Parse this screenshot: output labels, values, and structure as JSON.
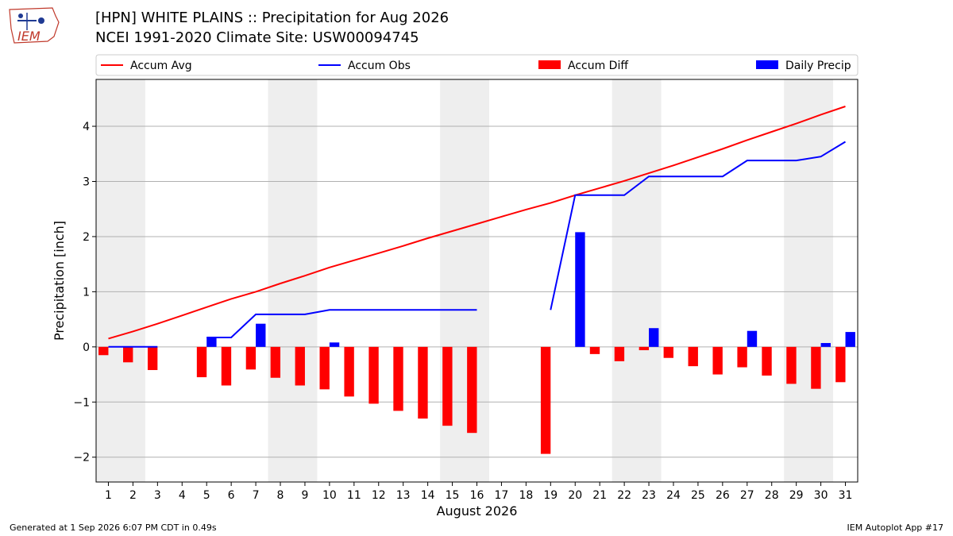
{
  "header": {
    "title_line1": "[HPN] WHITE PLAINS :: Precipitation for Aug 2026",
    "title_line2": "NCEI 1991-2020 Climate Site: USW00094745",
    "logo_text": "IEM"
  },
  "footer": {
    "generated": "Generated at 1 Sep 2026 6:07 PM CDT in 0.49s",
    "app": "IEM Autoplot App #17"
  },
  "colors": {
    "accum_avg": "#ff0000",
    "accum_obs": "#0000ff",
    "accum_diff": "#ff0000",
    "daily_precip": "#0000ff",
    "weekend_shade": "#eeeeee",
    "grid": "#b0b0b0"
  },
  "chart_data": {
    "type": "bar",
    "xlabel": "August 2026",
    "ylabel": "Precipitation [inch]",
    "ylim": [
      -2.45,
      4.85
    ],
    "yticks": [
      -2,
      -1,
      0,
      1,
      2,
      3,
      4
    ],
    "ytick_labels": [
      "−2",
      "−1",
      "0",
      "1",
      "2",
      "3",
      "4"
    ],
    "xlim": [
      0.5,
      31.5
    ],
    "x": [
      1,
      2,
      3,
      4,
      5,
      6,
      7,
      8,
      9,
      10,
      11,
      12,
      13,
      14,
      15,
      16,
      17,
      18,
      19,
      20,
      21,
      22,
      23,
      24,
      25,
      26,
      27,
      28,
      29,
      30,
      31
    ],
    "weekend_spans": [
      [
        0.5,
        2.5
      ],
      [
        7.5,
        9.5
      ],
      [
        14.5,
        16.5
      ],
      [
        21.5,
        23.5
      ],
      [
        28.5,
        30.5
      ]
    ],
    "grid": true,
    "legend_position": "top",
    "series": [
      {
        "name": "Accum Avg",
        "kind": "line",
        "values": [
          0.15,
          0.28,
          0.42,
          0.57,
          0.72,
          0.87,
          1.0,
          1.15,
          1.29,
          1.44,
          1.57,
          1.7,
          1.83,
          1.97,
          2.1,
          2.23,
          2.36,
          2.49,
          2.61,
          2.75,
          2.88,
          3.01,
          3.15,
          3.29,
          3.44,
          3.59,
          3.75,
          3.9,
          4.05,
          4.21,
          4.36
        ]
      },
      {
        "name": "Accum Obs",
        "kind": "line",
        "values": [
          0.0,
          0.0,
          0.0,
          null,
          0.17,
          0.17,
          0.59,
          0.59,
          0.59,
          0.67,
          0.67,
          0.67,
          0.67,
          0.67,
          0.67,
          0.67,
          null,
          null,
          0.67,
          2.75,
          2.75,
          2.75,
          3.09,
          3.09,
          3.09,
          3.09,
          3.38,
          3.38,
          3.38,
          3.45,
          3.72
        ]
      },
      {
        "name": "Accum Diff",
        "kind": "bar",
        "values": [
          -0.15,
          -0.28,
          -0.42,
          null,
          -0.55,
          -0.7,
          -0.41,
          -0.56,
          -0.7,
          -0.77,
          -0.9,
          -1.03,
          -1.16,
          -1.3,
          -1.43,
          -1.56,
          null,
          null,
          -1.94,
          0.0,
          -0.13,
          -0.26,
          -0.06,
          -0.2,
          -0.35,
          -0.5,
          -0.37,
          -0.52,
          -0.67,
          -0.76,
          -0.64
        ]
      },
      {
        "name": "Daily Precip",
        "kind": "bar",
        "values": [
          0.0,
          0.0,
          0.0,
          null,
          0.17,
          0.0,
          0.42,
          0.0,
          0.0,
          0.08,
          0.0,
          0.0,
          0.0,
          0.0,
          0.0,
          0.0,
          null,
          null,
          0.0,
          2.08,
          0.0,
          0.0,
          0.34,
          0.0,
          0.0,
          0.0,
          0.29,
          0.0,
          0.0,
          0.07,
          0.27
        ]
      }
    ]
  }
}
